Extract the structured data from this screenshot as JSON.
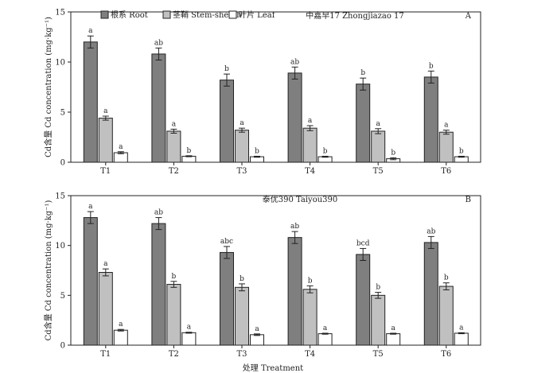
{
  "x_label": "处理 Treatment",
  "colors": {
    "root": "#7f7f7f",
    "stem": "#c0c0c0",
    "leaf": "#ffffff",
    "stroke": "#222222"
  },
  "chart_data": [
    {
      "type": "bar",
      "panel": "A",
      "title": "中嘉早17 Zhongjiazao 17",
      "ylabel": "Cd含量  Cd concentration (mg·kg⁻¹)",
      "ylim": [
        0,
        15
      ],
      "yticks": [
        0,
        5,
        10,
        15
      ],
      "categories": [
        "T1",
        "T2",
        "T3",
        "T4",
        "T5",
        "T6"
      ],
      "legend_position": "top-left",
      "series": [
        {
          "name": "根系 Root",
          "key": "root",
          "values": [
            12.0,
            10.8,
            8.2,
            8.9,
            7.8,
            8.5
          ],
          "errors": [
            0.6,
            0.6,
            0.6,
            0.6,
            0.6,
            0.6
          ],
          "labels": [
            "a",
            "ab",
            "b",
            "ab",
            "b",
            "b"
          ]
        },
        {
          "name": "茎鞘 Stem-sheath",
          "key": "stem",
          "values": [
            4.4,
            3.1,
            3.2,
            3.4,
            3.1,
            3.0
          ],
          "errors": [
            0.2,
            0.2,
            0.2,
            0.25,
            0.25,
            0.2
          ],
          "labels": [
            "a",
            "a",
            "a",
            "a",
            "a",
            "a"
          ]
        },
        {
          "name": "叶片 Leaf",
          "key": "leaf",
          "values": [
            0.95,
            0.6,
            0.55,
            0.55,
            0.35,
            0.55
          ],
          "errors": [
            0.1,
            0.05,
            0.05,
            0.05,
            0.1,
            0.05
          ],
          "labels": [
            "a",
            "b",
            "b",
            "b",
            "b",
            "b"
          ]
        }
      ]
    },
    {
      "type": "bar",
      "panel": "B",
      "title": "泰优390 Taiyou390",
      "ylabel": "Cd含量  Cd concentration (mg·kg⁻¹)",
      "ylim": [
        0,
        15
      ],
      "yticks": [
        0,
        5,
        10,
        15
      ],
      "categories": [
        "T1",
        "T2",
        "T3",
        "T4",
        "T5",
        "T6"
      ],
      "series": [
        {
          "name": "根系 Root",
          "key": "root",
          "values": [
            12.8,
            12.2,
            9.3,
            10.8,
            9.1,
            10.3
          ],
          "errors": [
            0.6,
            0.6,
            0.6,
            0.6,
            0.6,
            0.6
          ],
          "labels": [
            "a",
            "ab",
            "abc",
            "ab",
            "bcd",
            "ab"
          ]
        },
        {
          "name": "茎鞘 Stem-sheath",
          "key": "stem",
          "values": [
            7.3,
            6.1,
            5.8,
            5.6,
            5.0,
            5.9
          ],
          "errors": [
            0.35,
            0.3,
            0.35,
            0.35,
            0.3,
            0.35
          ],
          "labels": [
            "a",
            "b",
            "b",
            "b",
            "b",
            "b"
          ]
        },
        {
          "name": "叶片 Leaf",
          "key": "leaf",
          "values": [
            1.5,
            1.25,
            1.05,
            1.15,
            1.15,
            1.2
          ],
          "errors": [
            0.08,
            0.05,
            0.08,
            0.05,
            0.05,
            0.05
          ],
          "labels": [
            "a",
            "a",
            "a",
            "a",
            "a",
            "a"
          ]
        }
      ]
    }
  ]
}
